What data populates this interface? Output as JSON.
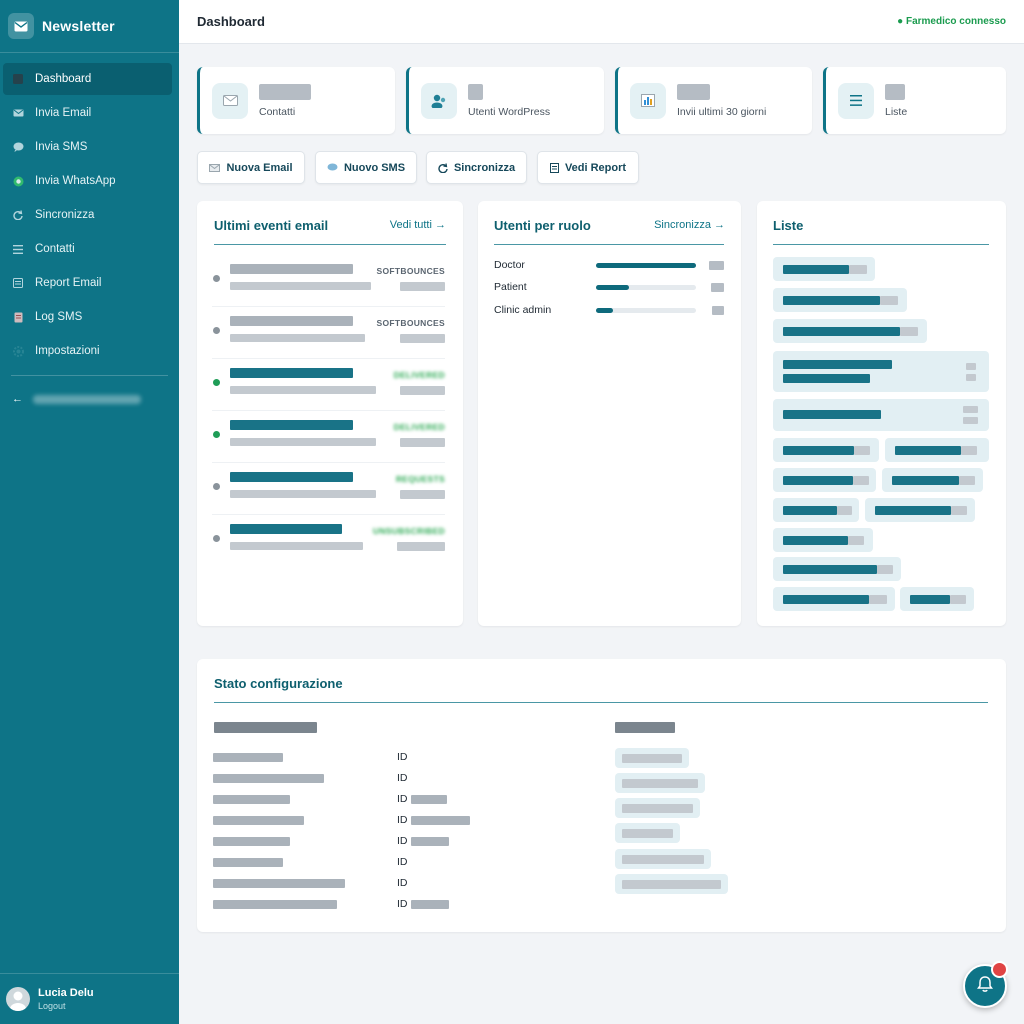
{
  "sidebar": {
    "brand": "Newsletter",
    "items": [
      {
        "label": "Dashboard",
        "icon": "dashboard-icon",
        "active": true
      },
      {
        "label": "Invia Email",
        "icon": "mail-icon"
      },
      {
        "label": "Invia SMS",
        "icon": "chat-icon"
      },
      {
        "label": "Invia WhatsApp",
        "icon": "whatsapp-icon"
      },
      {
        "label": "Sincronizza",
        "icon": "sync-icon"
      },
      {
        "label": "Contatti",
        "icon": "list-icon"
      },
      {
        "label": "Report Email",
        "icon": "report-icon"
      },
      {
        "label": "Log SMS",
        "icon": "log-icon"
      },
      {
        "label": "Impostazioni",
        "icon": "gear-icon"
      }
    ],
    "back_arrow": "←"
  },
  "user": {
    "name": "Lucia Delu",
    "logout": "Logout"
  },
  "header": {
    "title": "Dashboard",
    "status": "● Farmedico connesso",
    "status_color": "#1a9b4e"
  },
  "stats": [
    {
      "label": "Contatti",
      "icon": "mail-icon"
    },
    {
      "label": "Utenti WordPress",
      "icon": "users-icon"
    },
    {
      "label": "Invii ultimi 30 giorni",
      "icon": "chart-icon"
    },
    {
      "label": "Liste",
      "icon": "list-icon"
    }
  ],
  "actions": {
    "new_email": "Nuova Email",
    "new_sms": "Nuovo SMS",
    "sync": "Sincronizza",
    "report": "Vedi Report"
  },
  "events": {
    "title": "Ultimi eventi email",
    "link": "Vedi tutti →",
    "rows": [
      {
        "status": "SOFTBOUNCES",
        "dot": "#8a939b"
      },
      {
        "status": "SOFTBOUNCES",
        "dot": "#8a939b"
      },
      {
        "status": "DELIVERED",
        "dot": "#1f9d57"
      },
      {
        "status": "DELIVERED",
        "dot": "#1f9d57"
      },
      {
        "status": "REQUESTS",
        "dot": "#8a939b"
      },
      {
        "status": "UNSUBSCRIBED",
        "dot": "#8a939b"
      }
    ]
  },
  "roles": {
    "title": "Utenti per ruolo",
    "link": "Sincronizza →",
    "items": [
      {
        "label": "Doctor",
        "fraction": 1.0
      },
      {
        "label": "Patient",
        "fraction": 0.33
      },
      {
        "label": "Clinic admin",
        "fraction": 0.17
      }
    ]
  },
  "lists": {
    "title": "Liste"
  },
  "config": {
    "title": "Stato configurazione",
    "id_label": "ID"
  },
  "accent": "#0e7487"
}
